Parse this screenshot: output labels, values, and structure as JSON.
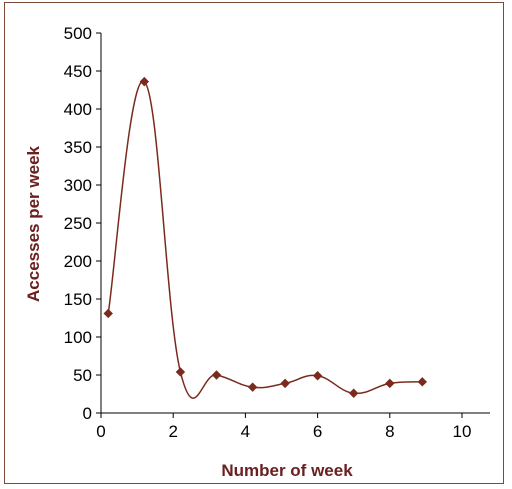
{
  "colors": {
    "series": "#7a2a1e",
    "axis": "#000000",
    "axis_title": "#6b2020",
    "frame": "#7a4a36"
  },
  "chart_data": {
    "type": "line",
    "title": "",
    "xlabel": "Number of week",
    "ylabel": "Accesses per week",
    "xlim": [
      0,
      10
    ],
    "ylim": [
      0,
      500
    ],
    "xticks": [
      0,
      2,
      4,
      6,
      8,
      10
    ],
    "yticks": [
      0,
      50,
      100,
      150,
      200,
      250,
      300,
      350,
      400,
      450,
      500
    ],
    "grid": false,
    "legend": "none",
    "smooth": true,
    "series": [
      {
        "marker": "diamond",
        "x": [
          0.2,
          1.2,
          2.2,
          3.2,
          4.2,
          5.1,
          6.0,
          7.0,
          8.0,
          8.9
        ],
        "y": [
          131,
          436,
          54,
          50,
          34,
          39,
          49,
          26,
          39,
          41
        ]
      }
    ]
  }
}
